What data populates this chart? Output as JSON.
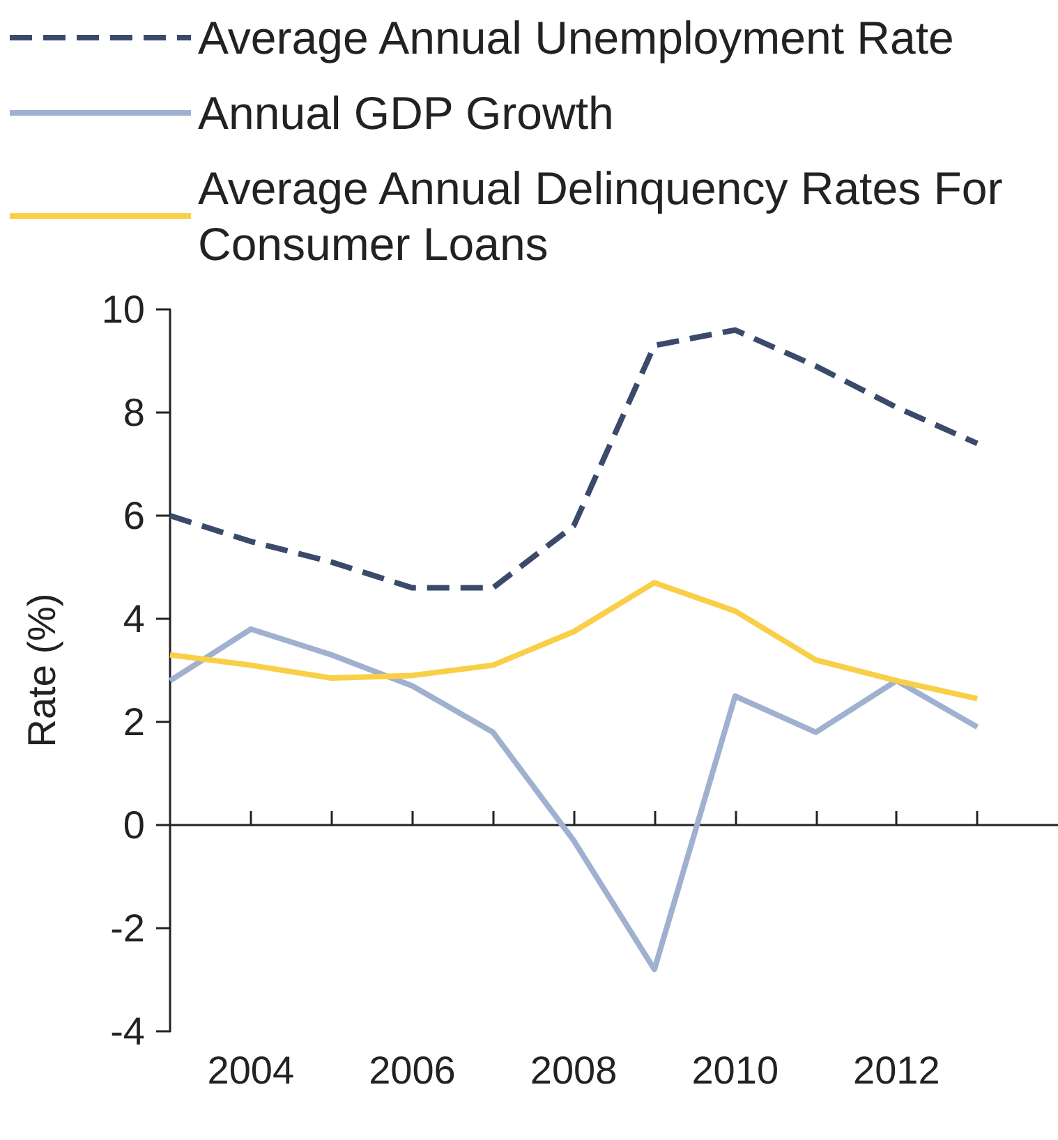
{
  "chart_data": {
    "type": "line",
    "ylabel": "Rate (%)",
    "x": [
      2003,
      2004,
      2005,
      2006,
      2007,
      2008,
      2009,
      2010,
      2011,
      2012,
      2013
    ],
    "series": [
      {
        "name": "Average Annual Unemployment Rate",
        "color": "#3b4a6b",
        "line_style": "dashed",
        "values": [
          6.0,
          5.5,
          5.1,
          4.6,
          4.6,
          5.8,
          9.3,
          9.6,
          8.9,
          8.1,
          7.4
        ]
      },
      {
        "name": "Annual GDP Growth",
        "color": "#9fb0d0",
        "line_style": "solid",
        "values": [
          2.8,
          3.8,
          3.3,
          2.7,
          1.8,
          -0.3,
          -2.8,
          2.5,
          1.8,
          2.8,
          1.9
        ]
      },
      {
        "name": "Average Annual Delinquency Rates For Consumer Loans",
        "color": "#f9cf48",
        "line_style": "solid",
        "values": [
          3.3,
          3.1,
          2.85,
          2.9,
          3.1,
          3.75,
          4.7,
          4.15,
          3.2,
          2.8,
          2.45
        ]
      }
    ],
    "xlim": [
      2003,
      2014
    ],
    "xticks": [
      2004,
      {
        "value": 2005,
        "label": null
      },
      2006,
      {
        "value": 2007,
        "label": null
      },
      2008,
      {
        "value": 2009,
        "label": null
      },
      2010,
      {
        "value": 2011,
        "label": null
      },
      2012,
      {
        "value": 2013,
        "label": null
      }
    ],
    "ylim": [
      -4,
      10
    ],
    "yticks": [
      -4,
      -2,
      0,
      2,
      4,
      6,
      8,
      10
    ],
    "legend": "top left",
    "marker": "none"
  }
}
